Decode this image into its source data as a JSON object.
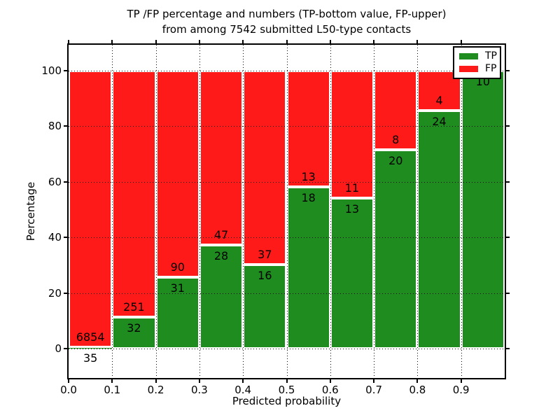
{
  "title": {
    "line1": "TP /FP percentage and numbers (TP-bottom value, FP-upper)",
    "line2": "from among 7542 submitted L50-type contacts"
  },
  "axes": {
    "x_label": "Predicted probability",
    "y_label": "Percentage",
    "x_tick_labels": [
      "0.0",
      "0.1",
      "0.2",
      "0.3",
      "0.4",
      "0.5",
      "0.6",
      "0.7",
      "0.8",
      "0.9"
    ],
    "y_tick_labels": [
      "0",
      "20",
      "40",
      "60",
      "80",
      "100"
    ],
    "y_tick_values": [
      0,
      20,
      40,
      60,
      80,
      100
    ]
  },
  "legend": {
    "items": [
      {
        "label": "TP",
        "color": "#1f8c1f"
      },
      {
        "label": "FP",
        "color": "#ff1a1a"
      }
    ]
  },
  "colors": {
    "tp": "#1f8c1f",
    "fp": "#ff1a1a",
    "bar_edge": "#ffffff",
    "grid": "#000000"
  },
  "chart_data": {
    "type": "bar",
    "stacked": true,
    "title": "TP /FP percentage and numbers (TP-bottom value, FP-upper) from among 7542 submitted L50-type contacts",
    "xlabel": "Predicted probability",
    "ylabel": "Percentage",
    "xlim": [
      0.0,
      1.0
    ],
    "ylim": [
      -10,
      110
    ],
    "grid": "dotted-black-over-bars",
    "legend_position": "upper right",
    "bin_width": 0.1,
    "bin_starts": [
      0.0,
      0.1,
      0.2,
      0.3,
      0.4,
      0.5,
      0.6,
      0.7,
      0.8,
      0.9
    ],
    "series": [
      {
        "name": "TP",
        "counts": [
          35,
          32,
          31,
          28,
          16,
          18,
          13,
          20,
          24,
          10
        ]
      },
      {
        "name": "FP",
        "counts": [
          6854,
          251,
          90,
          47,
          37,
          13,
          11,
          8,
          4,
          0
        ]
      }
    ],
    "tp_percent_of_bin": [
      0.51,
      11.31,
      25.62,
      37.33,
      30.19,
      58.06,
      54.17,
      71.43,
      85.71,
      100.0
    ],
    "total_submitted": 7542
  }
}
